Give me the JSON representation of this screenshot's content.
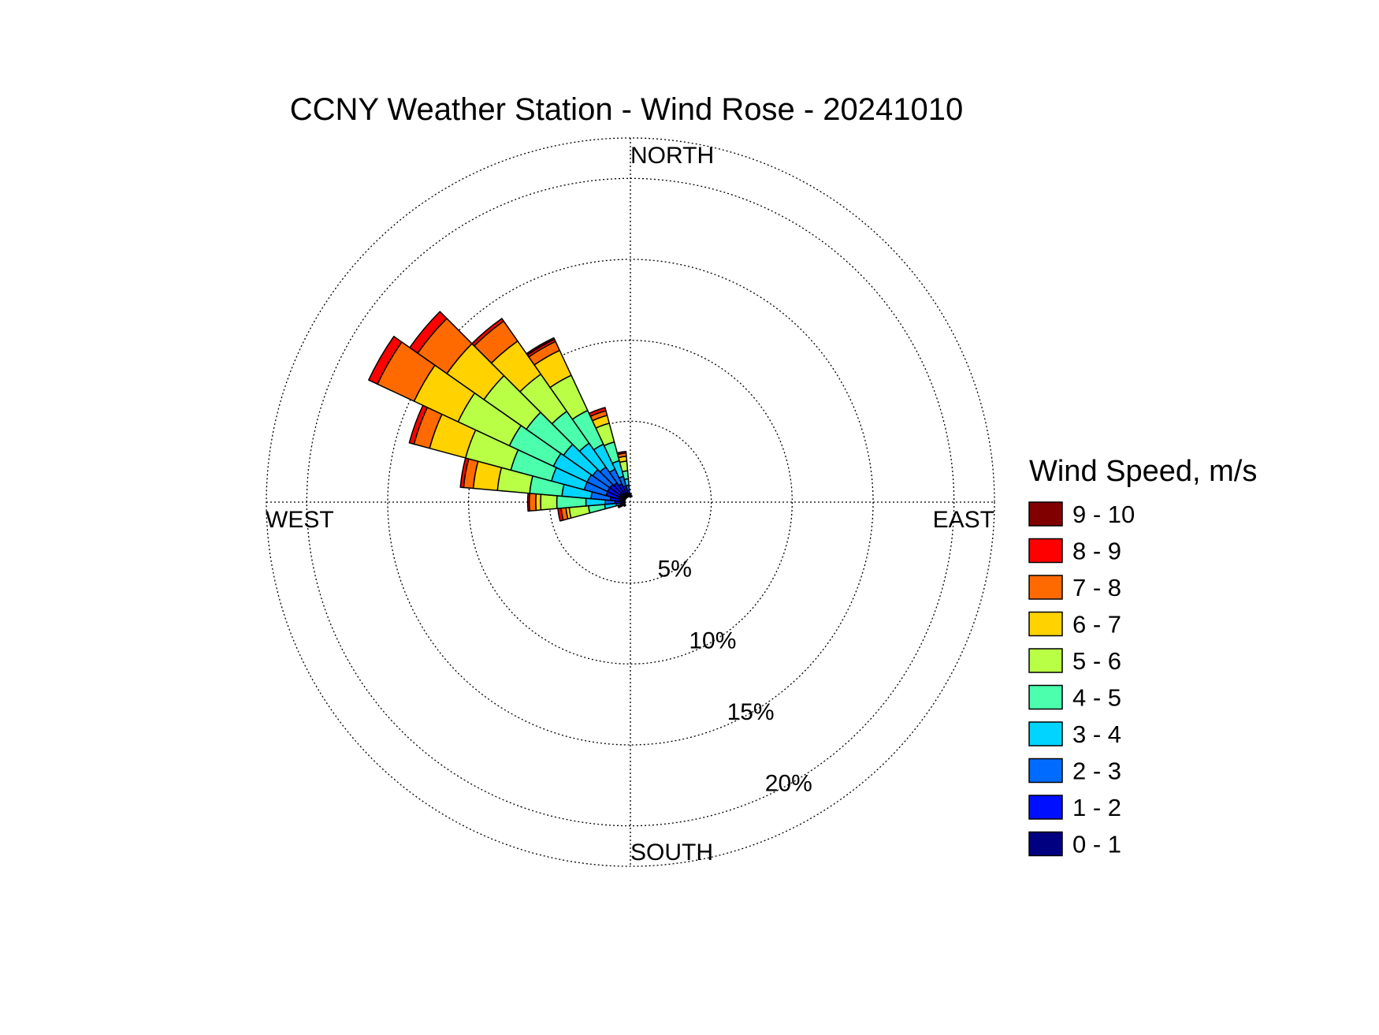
{
  "chart_data": {
    "type": "wind-rose",
    "title": "CCNY Weather Station - Wind Rose - 20241010",
    "directions": {
      "north": "NORTH",
      "east": "EAST",
      "south": "SOUTH",
      "west": "WEST"
    },
    "radial_ticks": [
      {
        "value": 5,
        "label": "5%"
      },
      {
        "value": 10,
        "label": "10%"
      },
      {
        "value": 15,
        "label": "15%"
      },
      {
        "value": 20,
        "label": "20%"
      }
    ],
    "radial_max": 22.5,
    "radial_min_hole": 0.35,
    "grid": true,
    "legend": {
      "title": "Wind Speed, m/s",
      "placement": "right",
      "bins": [
        {
          "label": "9 - 10",
          "color": "#800000"
        },
        {
          "label": "8 - 9",
          "color": "#ff0000"
        },
        {
          "label": "7 - 8",
          "color": "#ff6a00"
        },
        {
          "label": "6 - 7",
          "color": "#ffd200"
        },
        {
          "label": "5 - 6",
          "color": "#b8ff45"
        },
        {
          "label": "4 - 5",
          "color": "#4cffad"
        },
        {
          "label": "3 - 4",
          "color": "#00d4ff"
        },
        {
          "label": "2 - 3",
          "color": "#006cff"
        },
        {
          "label": "1 - 2",
          "color": "#0010ff"
        },
        {
          "label": "0 - 1",
          "color": "#000080"
        }
      ]
    },
    "sector_width_deg": 10,
    "series_order": [
      "0 - 1",
      "1 - 2",
      "2 - 3",
      "3 - 4",
      "4 - 5",
      "5 - 6",
      "6 - 7",
      "7 - 8",
      "8 - 9",
      "9 - 10"
    ],
    "sectors": [
      {
        "direction_deg": 250,
        "values": [
          0.05,
          0.05,
          0.05,
          0.05,
          0.05,
          0.05,
          0.05,
          0.05,
          0.05,
          0
        ]
      },
      {
        "direction_deg": 260,
        "values": [
          0.1,
          0.15,
          0.3,
          0.7,
          1.0,
          1.2,
          0.2,
          0.3,
          0.2,
          0
        ]
      },
      {
        "direction_deg": 270,
        "values": [
          0.2,
          0.4,
          0.6,
          1.2,
          1.8,
          1.0,
          0.3,
          0.4,
          0.1,
          0
        ]
      },
      {
        "direction_deg": 280,
        "values": [
          0.3,
          0.6,
          1.2,
          1.8,
          2.0,
          2.0,
          1.5,
          0.6,
          0.2,
          0
        ]
      },
      {
        "direction_deg": 290,
        "values": [
          0.4,
          0.8,
          1.4,
          2.1,
          2.6,
          2.9,
          2.3,
          1.0,
          0.3,
          0
        ]
      },
      {
        "direction_deg": 300,
        "values": [
          0.4,
          0.8,
          1.4,
          2.3,
          3.0,
          3.5,
          3.0,
          2.5,
          0.6,
          0
        ]
      },
      {
        "direction_deg": 310,
        "values": [
          0.4,
          0.8,
          1.3,
          2.2,
          2.8,
          3.2,
          2.8,
          2.2,
          0.6,
          0
        ]
      },
      {
        "direction_deg": 320,
        "values": [
          0.3,
          0.8,
          1.2,
          1.8,
          2.4,
          2.8,
          2.5,
          1.5,
          0.2,
          0
        ]
      },
      {
        "direction_deg": 330,
        "values": [
          0.3,
          0.6,
          1.0,
          1.7,
          2.3,
          2.4,
          1.7,
          0.6,
          0.15,
          0.1
        ]
      },
      {
        "direction_deg": 340,
        "values": [
          0.3,
          0.4,
          0.6,
          1.0,
          1.2,
          1.2,
          0.5,
          0.3,
          0.2,
          0
        ]
      },
      {
        "direction_deg": 350,
        "values": [
          0.15,
          0.25,
          0.3,
          0.4,
          0.5,
          0.6,
          0.3,
          0.2,
          0.1,
          0
        ]
      },
      {
        "direction_deg": 0,
        "values": [
          0.1,
          0.05,
          0.05,
          0,
          0,
          0,
          0,
          0,
          0,
          0
        ]
      },
      {
        "direction_deg": 240,
        "values": [
          0.05,
          0.05,
          0,
          0,
          0,
          0,
          0,
          0,
          0,
          0
        ]
      },
      {
        "direction_deg": 10,
        "values": [
          0.05,
          0,
          0,
          0,
          0,
          0,
          0,
          0,
          0,
          0
        ]
      }
    ]
  }
}
